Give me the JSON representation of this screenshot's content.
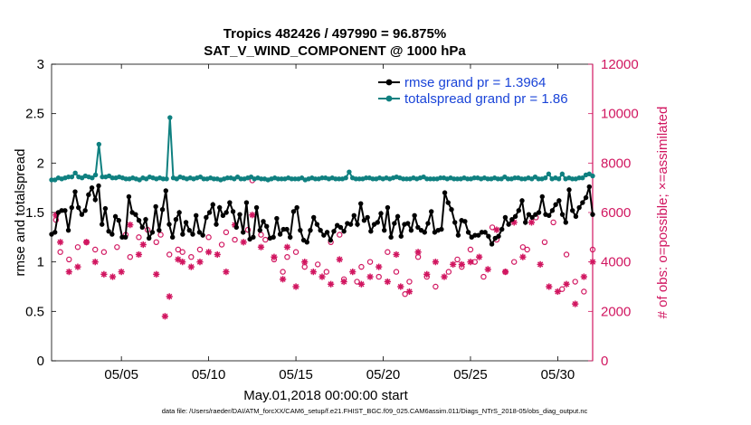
{
  "chart_data": {
    "type": "line",
    "title_line1": "Tropics 482426 / 497990 = 96.875%",
    "title_line2": "SAT_V_WIND_COMPONENT @ 1000 hPa",
    "xlabel": "May.01,2018 00:00:00 start",
    "ylabel_left": "rmse and totalspread",
    "ylabel_right": "# of obs: o=possible; ×=assimilated",
    "xlim": [
      1.0,
      32.0
    ],
    "ylim_left": [
      0,
      3
    ],
    "ylim_right": [
      0,
      12000
    ],
    "x_ticks": [
      5,
      10,
      15,
      20,
      25,
      30
    ],
    "x_tick_labels": [
      "05/05",
      "05/10",
      "05/15",
      "05/20",
      "05/25",
      "05/30"
    ],
    "y_ticks_left": [
      0,
      0.5,
      1,
      1.5,
      2,
      2.5,
      3
    ],
    "y_tick_labels_left": [
      "0",
      "0.5",
      "1",
      "1.5",
      "2",
      "2.5",
      "3"
    ],
    "y_ticks_right": [
      0,
      2000,
      4000,
      6000,
      8000,
      10000,
      12000
    ],
    "y_tick_labels_right": [
      "0",
      "2000",
      "4000",
      "6000",
      "8000",
      "10000",
      "12000"
    ],
    "colors": {
      "rmse": "#000000",
      "spread": "#0f8080",
      "obs": "#d11660",
      "legend_text": "#1a44d8"
    },
    "series": [
      {
        "name": "rmse grand pr = 1.3964",
        "values": [
          1.28,
          1.3,
          1.5,
          1.52,
          1.52,
          1.32,
          1.55,
          1.71,
          1.55,
          1.48,
          1.52,
          1.68,
          1.75,
          1.63,
          1.77,
          1.38,
          1.54,
          1.31,
          1.28,
          1.46,
          1.42,
          1.25,
          1.25,
          1.66,
          1.5,
          1.48,
          1.42,
          1.35,
          1.43,
          1.24,
          1.3,
          1.56,
          1.32,
          1.53,
          1.72,
          1.38,
          1.25,
          1.43,
          1.5,
          1.28,
          1.4,
          1.32,
          1.28,
          1.47,
          1.3,
          1.27,
          1.45,
          1.5,
          1.58,
          1.38,
          1.55,
          1.47,
          1.5,
          1.6,
          1.51,
          1.35,
          1.48,
          1.3,
          1.6,
          1.23,
          1.25,
          1.55,
          1.32,
          1.41,
          1.36,
          1.24,
          1.25,
          1.44,
          1.28,
          1.33,
          1.33,
          1.25,
          1.51,
          1.55,
          1.32,
          1.22,
          1.2,
          1.32,
          1.45,
          1.38,
          1.32,
          1.27,
          1.3,
          1.22,
          1.31,
          1.37,
          1.35,
          1.31,
          1.39,
          1.38,
          1.47,
          1.38,
          1.59,
          1.42,
          1.45,
          1.31,
          1.38,
          1.4,
          1.49,
          1.32,
          1.55,
          1.25,
          1.39,
          1.46,
          1.26,
          1.38,
          1.39,
          1.32,
          1.47,
          1.35,
          1.32,
          1.3,
          1.39,
          1.51,
          1.3,
          1.32,
          1.33,
          1.7,
          1.6,
          1.53,
          1.4,
          1.27,
          1.42,
          1.41,
          1.3,
          1.25,
          1.27,
          1.27,
          1.3,
          1.3,
          1.26,
          1.18,
          1.24,
          1.26,
          1.33,
          1.45,
          1.38,
          1.43,
          1.46,
          1.52,
          1.62,
          1.4,
          1.48,
          1.45,
          1.48,
          1.5,
          1.66,
          1.48,
          1.47,
          1.52,
          1.58,
          1.62,
          1.48,
          1.4,
          1.73,
          1.52,
          1.46,
          1.55,
          1.6,
          1.65,
          1.76,
          1.48
        ]
      },
      {
        "name": "totalspread grand pr = 1.86",
        "values": [
          1.83,
          1.83,
          1.85,
          1.84,
          1.85,
          1.86,
          1.86,
          1.9,
          1.86,
          1.85,
          1.87,
          1.86,
          1.85,
          1.88,
          2.19,
          1.86,
          1.86,
          1.87,
          1.85,
          1.85,
          1.86,
          1.85,
          1.84,
          1.84,
          1.85,
          1.84,
          1.83,
          1.85,
          1.84,
          1.86,
          1.85,
          1.84,
          1.85,
          1.84,
          1.84,
          2.46,
          1.85,
          1.84,
          1.86,
          1.85,
          1.84,
          1.85,
          1.84,
          1.85,
          1.86,
          1.84,
          1.84,
          1.85,
          1.84,
          1.84,
          1.83,
          1.84,
          1.85,
          1.85,
          1.84,
          1.86,
          1.84,
          1.84,
          1.85,
          1.86,
          1.84,
          1.85,
          1.84,
          1.84,
          1.83,
          1.84,
          1.85,
          1.84,
          1.84,
          1.84,
          1.85,
          1.84,
          1.84,
          1.84,
          1.85,
          1.83,
          1.84,
          1.85,
          1.84,
          1.84,
          1.85,
          1.85,
          1.84,
          1.85,
          1.84,
          1.84,
          1.84,
          1.85,
          1.91,
          1.85,
          1.84,
          1.84,
          1.84,
          1.85,
          1.85,
          1.84,
          1.84,
          1.85,
          1.84,
          1.85,
          1.84,
          1.85,
          1.86,
          1.85,
          1.84,
          1.84,
          1.84,
          1.85,
          1.84,
          1.85,
          1.86,
          1.84,
          1.84,
          1.84,
          1.84,
          1.85,
          1.85,
          1.84,
          1.85,
          1.84,
          1.84,
          1.84,
          1.85,
          1.84,
          1.84,
          1.85,
          1.85,
          1.84,
          1.85,
          1.84,
          1.84,
          1.85,
          1.84,
          1.84,
          1.86,
          1.84,
          1.84,
          1.85,
          1.85,
          1.84,
          1.84,
          1.85,
          1.84,
          1.86,
          1.84,
          1.84,
          1.85,
          1.89,
          1.84,
          1.85,
          1.84,
          1.89,
          1.84,
          1.85,
          1.84,
          1.84,
          1.85,
          1.85,
          1.88,
          1.89,
          1.87
        ]
      }
    ],
    "obs_possible_x": [
      1.25,
      1.5,
      2.0,
      2.5,
      3.0,
      3.5,
      4.0,
      4.75,
      5.25,
      5.5,
      6.0,
      6.5,
      7.0,
      7.25,
      7.75,
      8.25,
      8.5,
      9.0,
      9.5,
      10.0,
      10.75,
      11.0,
      11.5,
      12.25,
      12.5,
      13.0,
      13.25,
      13.75,
      14.25,
      14.5,
      15.0,
      15.5,
      16.25,
      16.75,
      17.0,
      17.5,
      17.75,
      18.5,
      18.75,
      19.25,
      19.75,
      20.25,
      20.75,
      21.25,
      21.5,
      22.0,
      22.5,
      23.0,
      23.75,
      24.25,
      24.5,
      25.0,
      25.25,
      25.75,
      26.25,
      26.5,
      27.0,
      27.5,
      28.0,
      28.25,
      28.75,
      29.25,
      29.75,
      30.25,
      30.5,
      31.0,
      31.5,
      32.0
    ],
    "obs_possible": [
      5700,
      4400,
      4100,
      4600,
      4800,
      4500,
      4400,
      4600,
      5100,
      4200,
      5000,
      5300,
      4800,
      5100,
      4300,
      4500,
      4400,
      4200,
      4500,
      5000,
      4700,
      5200,
      4900,
      5300,
      7300,
      5100,
      4900,
      4100,
      3600,
      4200,
      4400,
      3800,
      3900,
      3600,
      4800,
      5100,
      3300,
      3200,
      3800,
      4000,
      3400,
      4400,
      3600,
      2700,
      3200,
      4200,
      3400,
      3000,
      3600,
      4100,
      3800,
      4500,
      4000,
      3400,
      5400,
      4900,
      3600,
      4000,
      4600,
      4500,
      5800,
      4800,
      5600,
      2900,
      4300,
      3200,
      2800,
      4500
    ],
    "obs_assimilated_x": [
      1.25,
      1.5,
      2.0,
      2.5,
      3.0,
      3.5,
      4.0,
      4.5,
      5.0,
      5.5,
      6.0,
      6.25,
      7.0,
      7.5,
      7.75,
      8.25,
      8.5,
      9.0,
      9.5,
      10.0,
      10.5,
      11.0,
      11.5,
      12.0,
      12.5,
      13.0,
      13.75,
      14.25,
      14.5,
      15.0,
      15.5,
      16.0,
      16.5,
      17.0,
      17.5,
      17.75,
      18.25,
      18.75,
      19.25,
      19.75,
      20.25,
      20.75,
      21.0,
      21.5,
      22.0,
      22.5,
      23.0,
      23.5,
      24.0,
      24.5,
      25.0,
      25.5,
      26.0,
      26.5,
      27.0,
      27.5,
      28.0,
      28.5,
      29.0,
      29.5,
      30.0,
      30.5,
      31.0,
      31.5,
      32.0
    ],
    "obs_assimilated": [
      5900,
      4800,
      3600,
      3800,
      4800,
      4000,
      3500,
      3400,
      3600,
      5500,
      4300,
      4700,
      3500,
      1800,
      2600,
      4100,
      4000,
      3800,
      4000,
      4400,
      4300,
      3600,
      5500,
      4800,
      5900,
      4600,
      4200,
      3300,
      4600,
      3000,
      4000,
      3600,
      3400,
      3100,
      4100,
      3200,
      3600,
      3100,
      3400,
      3800,
      3200,
      4300,
      3000,
      2800,
      4400,
      3500,
      4000,
      3400,
      3900,
      3900,
      4000,
      4200,
      3700,
      5300,
      3600,
      5600,
      4200,
      5600,
      3900,
      3000,
      2800,
      3100,
      2300,
      3400,
      4000
    ]
  },
  "footer": "data file: /Users/raeder/DAI/ATM_forcXX/CAM6_setup/f.e21.FHIST_BGC.f09_025.CAM6assim.011/Diags_NTrS_2018-05/obs_diag_output.nc"
}
